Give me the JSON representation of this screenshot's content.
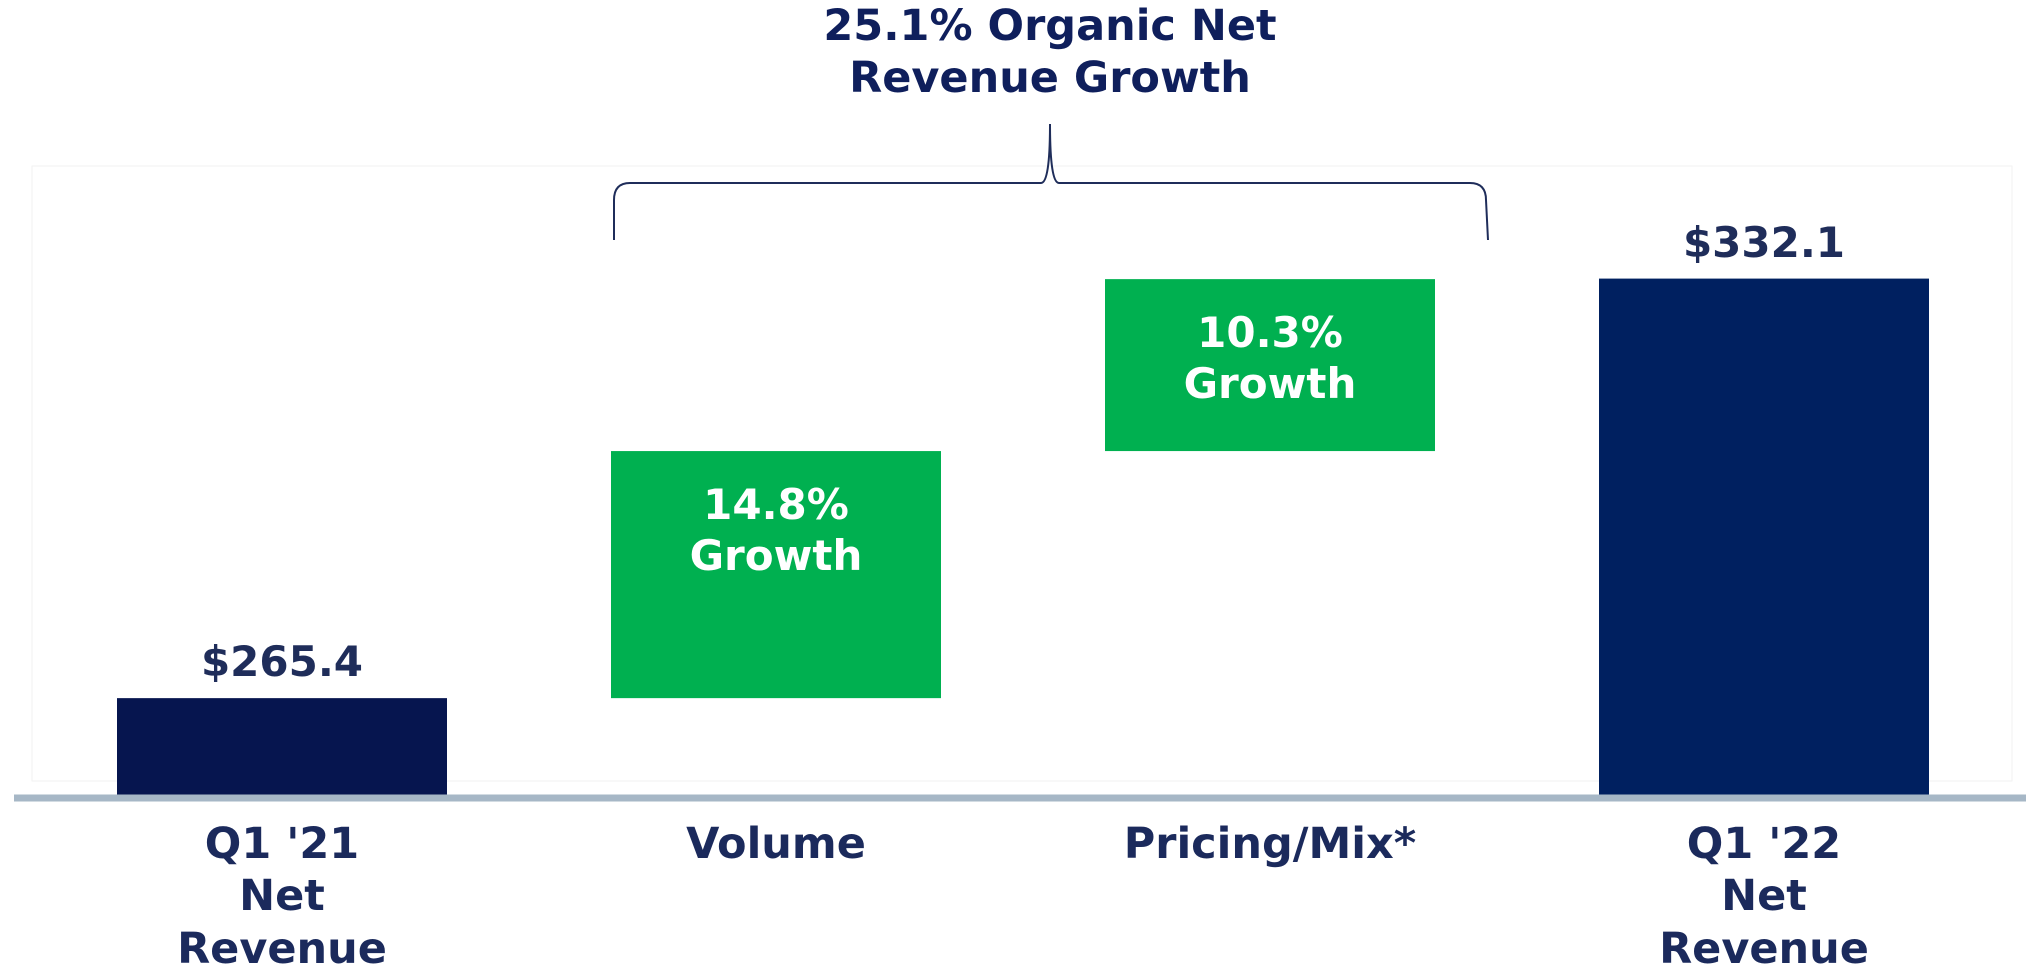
{
  "chart_data": {
    "type": "waterfall",
    "title": "25.1% Organic Net Revenue Growth",
    "categories": [
      "Q1 '21 Net Revenue",
      "Volume",
      "Pricing/Mix*",
      "Q1 '22 Net Revenue"
    ],
    "values": [
      265.4,
      14.8,
      10.3,
      332.1
    ],
    "value_labels": [
      "$265.4",
      "14.8% Growth",
      "10.3% Growth",
      "$332.1"
    ],
    "kinds": [
      "total",
      "percent",
      "percent",
      "total"
    ],
    "colors": [
      "#06154f",
      "#00b050",
      "#00b050",
      "#002060"
    ],
    "ylim": [
      250,
      350
    ]
  }
}
